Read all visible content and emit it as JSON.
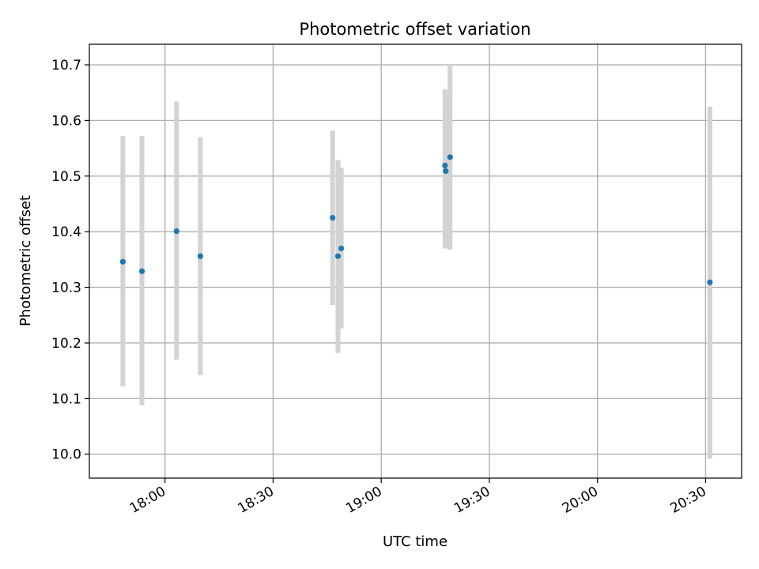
{
  "chart_data": {
    "type": "scatter",
    "title": "Photometric offset variation",
    "xlabel": "UTC time",
    "ylabel": "Photometric offset",
    "grid": true,
    "xlim": [
      "17:39",
      "20:40"
    ],
    "ylim": [
      9.957,
      10.737
    ],
    "x_ticks": [
      "18:00",
      "18:30",
      "19:00",
      "19:30",
      "20:00",
      "20:30"
    ],
    "y_ticks": [
      10.0,
      10.1,
      10.2,
      10.3,
      10.4,
      10.5,
      10.6,
      10.7
    ],
    "y_tick_labels": [
      "10.0",
      "10.1",
      "10.2",
      "10.3",
      "10.4",
      "10.5",
      "10.6",
      "10.7"
    ],
    "colors": {
      "point": "#1f77b4",
      "errorbar": "#d3d3d3",
      "grid": "#b0b0b0"
    },
    "points": [
      {
        "time": "17:48:18",
        "y": 10.346,
        "y_low": 10.122,
        "y_high": 10.572
      },
      {
        "time": "17:53:36",
        "y": 10.329,
        "y_low": 10.088,
        "y_high": 10.572
      },
      {
        "time": "18:03:12",
        "y": 10.401,
        "y_low": 10.17,
        "y_high": 10.634
      },
      {
        "time": "18:09:48",
        "y": 10.356,
        "y_low": 10.142,
        "y_high": 10.57
      },
      {
        "time": "18:46:30",
        "y": 10.425,
        "y_low": 10.268,
        "y_high": 10.582
      },
      {
        "time": "18:48:00",
        "y": 10.356,
        "y_low": 10.182,
        "y_high": 10.529
      },
      {
        "time": "18:48:54",
        "y": 10.37,
        "y_low": 10.226,
        "y_high": 10.515
      },
      {
        "time": "19:17:42",
        "y": 10.519,
        "y_low": 10.37,
        "y_high": 10.656
      },
      {
        "time": "19:17:54",
        "y": 10.509,
        "y_low": 10.37,
        "y_high": 10.648
      },
      {
        "time": "19:19:06",
        "y": 10.534,
        "y_low": 10.368,
        "y_high": 10.7
      },
      {
        "time": "20:31:12",
        "y": 10.309,
        "y_low": 9.992,
        "y_high": 10.625
      }
    ]
  }
}
